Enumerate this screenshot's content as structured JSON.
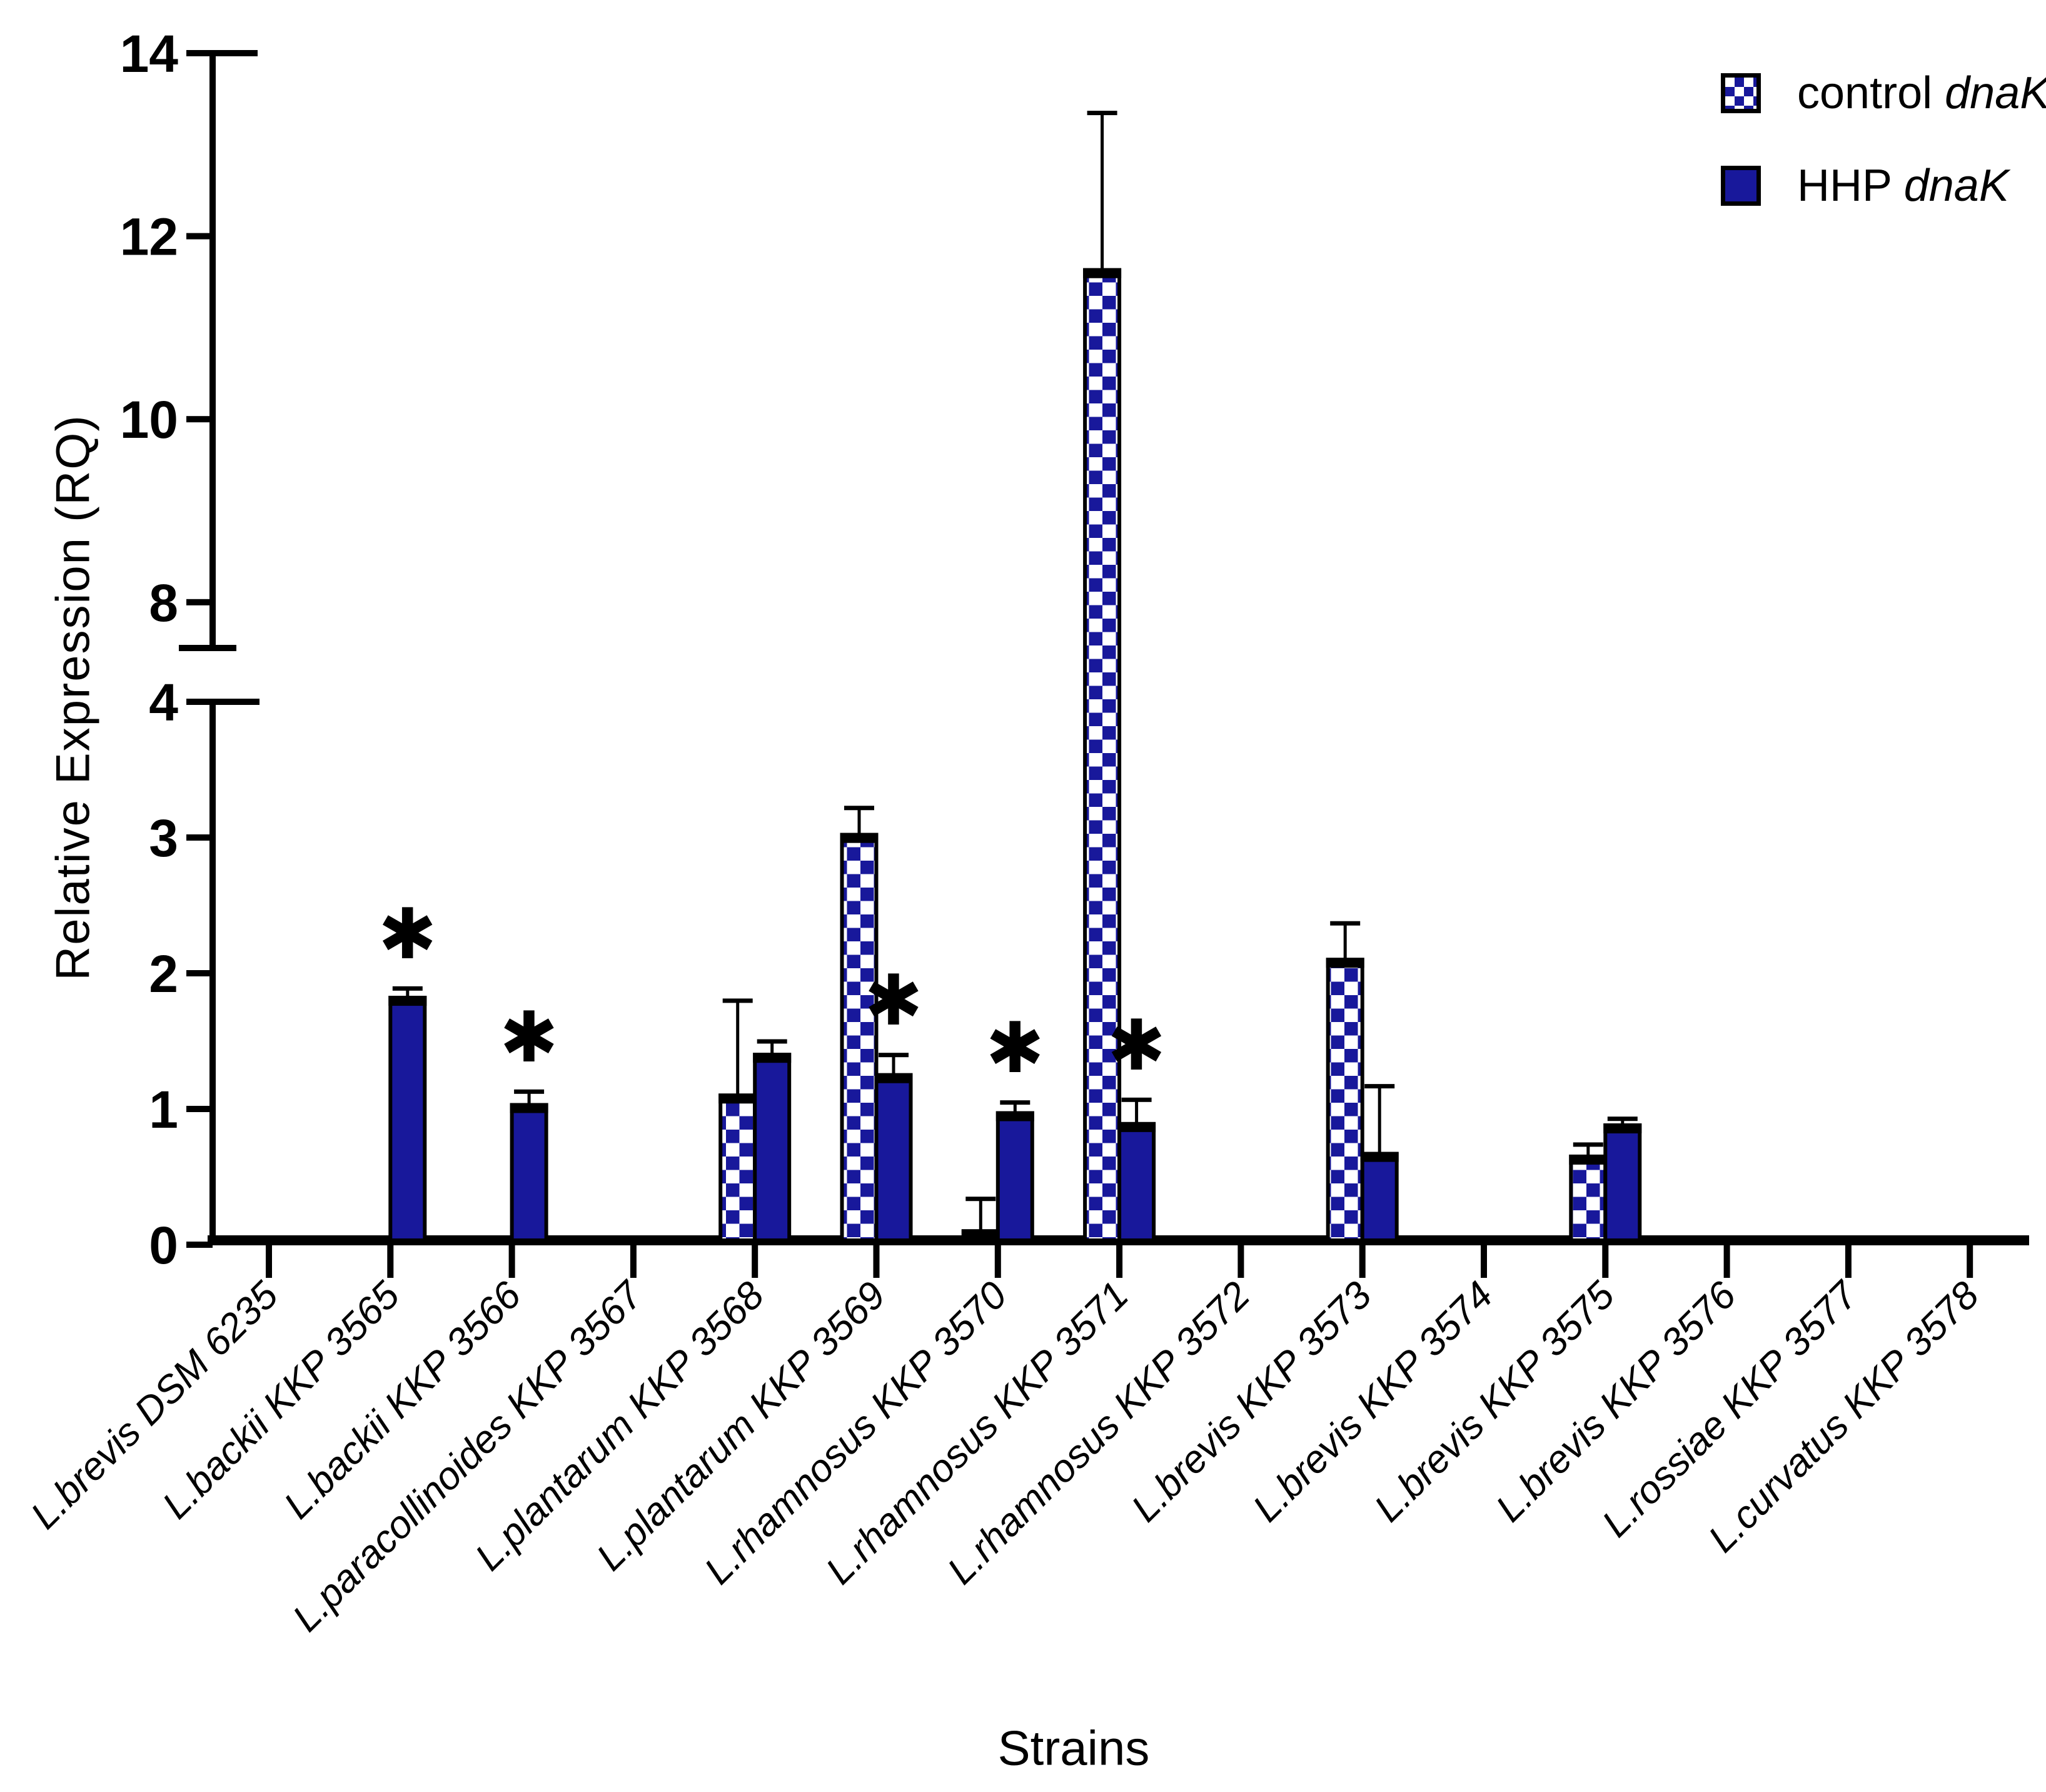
{
  "figure": {
    "background": "#ffffff"
  },
  "chart_data": {
    "type": "bar",
    "title": "",
    "xlabel": "Strains",
    "ylabel": "Relative Expression (RQ)",
    "bar_color": "#18189B",
    "checker_white": "#ffffff",
    "outline_color": "#000000",
    "grid": false,
    "axis_break": true,
    "lower_axis": {
      "range": [
        0,
        4
      ],
      "ticks": [
        0,
        1,
        2,
        3,
        4
      ]
    },
    "upper_axis": {
      "range": [
        7.5,
        14
      ],
      "ticks": [
        8,
        10,
        12,
        14
      ]
    },
    "legend": {
      "position": "top-right",
      "items": [
        {
          "id": "control",
          "prefix": "control ",
          "gene": "dnaK",
          "pattern": "checkered"
        },
        {
          "id": "hhp",
          "prefix": "HHP ",
          "gene": "dnaK",
          "pattern": "solid"
        }
      ]
    },
    "significance_marker": "✱",
    "categories": [
      "L.brevis DSM 6235",
      "L.backii KKP 3565",
      "L.backii KKP 3566",
      "L.paracollinoides KKP 3567",
      "L.plantarum KKP 3568",
      "L.plantarum KKP 3569",
      "L.rhamnosus KKP 3570",
      "L.rhamnosus KKP 3571",
      "L.rhamnosus KKP 3572",
      "L.brevis KKP 3573",
      "L.brevis KKP 3574",
      "L.brevis KKP 3575",
      "L.brevis KKP 3576",
      "L.rossiae KKP 3577",
      "L.curvatus KKP 3578"
    ],
    "series": [
      {
        "name": "control dnaK",
        "pattern": "checkered",
        "values": [
          0,
          0,
          0,
          0,
          1.1,
          3.02,
          0.1,
          11.63,
          0,
          2.1,
          0,
          0.65,
          0,
          0,
          0
        ],
        "errors": [
          null,
          null,
          null,
          null,
          0.7,
          0.2,
          0.24,
          1.72,
          null,
          0.27,
          null,
          0.09,
          null,
          null,
          null
        ],
        "significant": [
          false,
          false,
          false,
          false,
          false,
          false,
          false,
          false,
          false,
          false,
          false,
          false,
          false,
          false,
          false
        ]
      },
      {
        "name": "HHP dnaK",
        "pattern": "solid",
        "values": [
          0,
          1.82,
          1.03,
          0,
          1.4,
          1.25,
          0.97,
          0.89,
          0,
          0.67,
          0,
          0.88,
          0,
          0,
          0
        ],
        "errors": [
          null,
          0.07,
          0.1,
          null,
          0.1,
          0.15,
          0.08,
          0.18,
          null,
          0.5,
          null,
          0.05,
          null,
          null,
          null
        ],
        "significant": [
          false,
          true,
          true,
          false,
          false,
          true,
          true,
          true,
          false,
          false,
          false,
          false,
          false,
          false,
          false
        ]
      }
    ]
  }
}
